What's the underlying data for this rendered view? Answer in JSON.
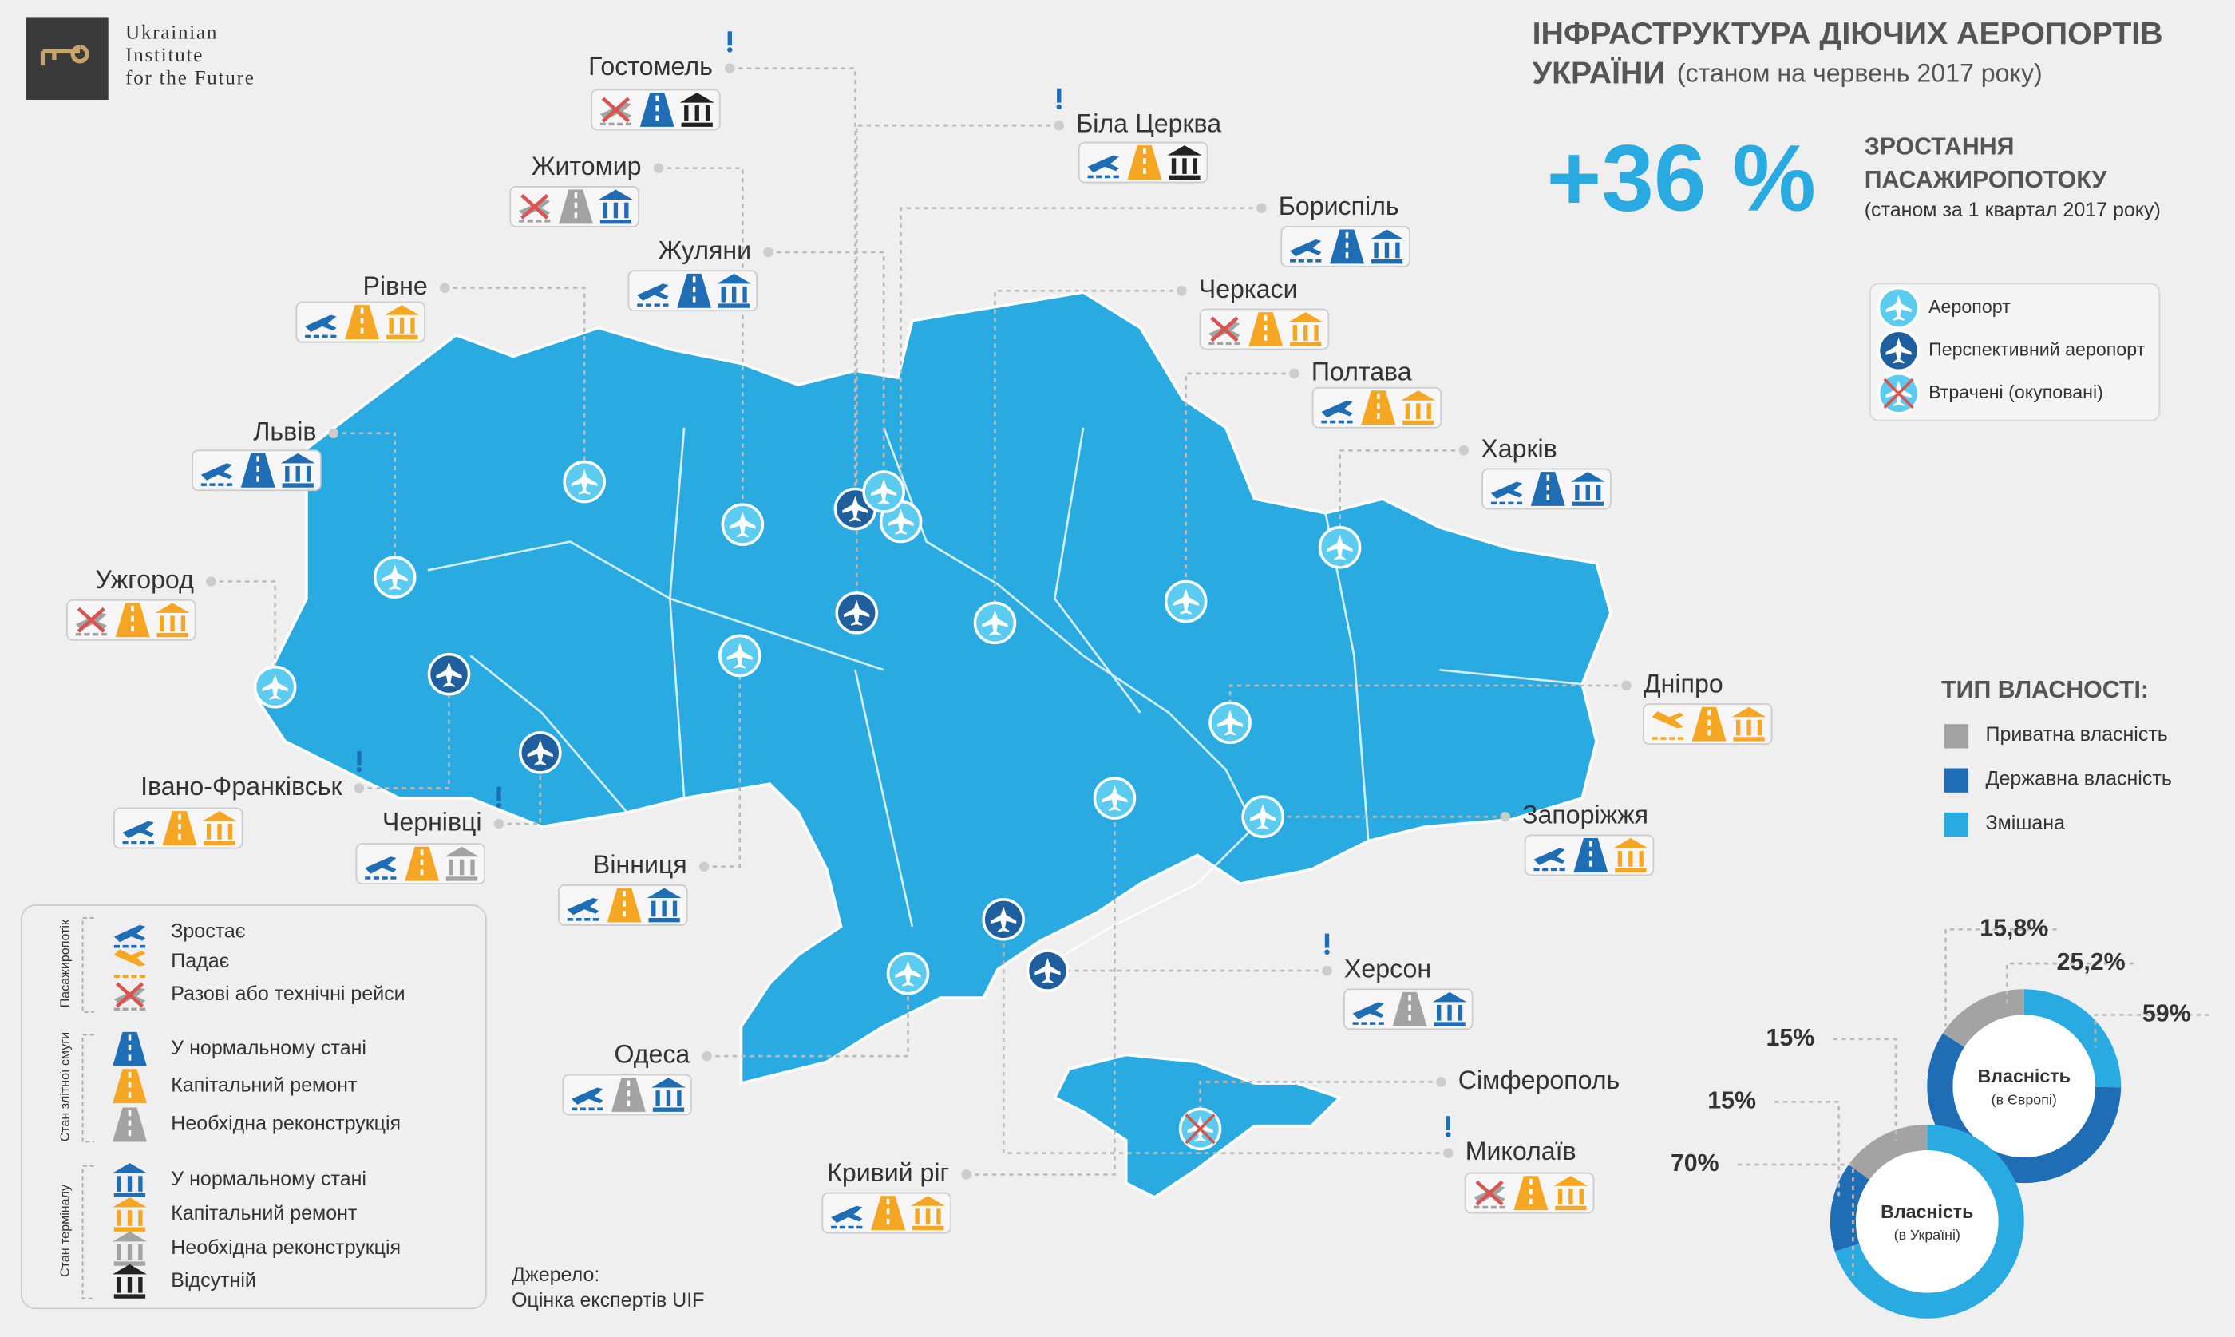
{
  "header": {
    "logo": [
      "Ukrainian",
      "Institute",
      "for the Future"
    ],
    "title_line1": "ІНФРАСТРУКТУРА ДІЮЧИХ АЕРОПОРТІВ",
    "title_line2_bold": "УКРАЇНИ",
    "title_line2_rest": "(станом на червень 2017 року)"
  },
  "stat": {
    "value": "+36 %",
    "label": [
      "ЗРОСТАННЯ",
      "ПАСАЖИРОПОТОКУ"
    ],
    "note": "(станом за 1 квартал 2017 року)"
  },
  "airport_legend": [
    "Аеропорт",
    "Перспективний аеропорт",
    "Втрачені (окуповані)"
  ],
  "airports": [
    "Гостомель",
    "Біла Церква",
    "Житомир",
    "Бориспіль",
    "Жуляни",
    "Черкаси",
    "Рівне",
    "Полтава",
    "Львів",
    "Харків",
    "Ужгород",
    "Дніпро",
    "Івано-Франківськ",
    "Чернівці",
    "Запоріжжя",
    "Вінниця",
    "Херсон",
    "Одеса",
    "Сімферополь",
    "Кривий ріг",
    "Миколаїв"
  ],
  "icon_legend": [
    {
      "title": "Пасажиропотік",
      "items": [
        "Зростає",
        "Падає",
        "Разові або технічні рейси"
      ]
    },
    {
      "title": "Стан злітної смуги",
      "items": [
        "У нормальному стані",
        "Капітальний ремонт",
        "Необхідна реконструкція"
      ]
    },
    {
      "title": "Стан терміналу",
      "items": [
        "У нормальному стані",
        "Капітальний ремонт",
        "Необхідна реконструкція",
        "Відсутній"
      ]
    }
  ],
  "source": [
    "Джерело:",
    "Оцінка експертів UIF"
  ],
  "ownership": {
    "title": "ТИП ВЛАСНОСТІ:",
    "categories": [
      "Приватна власність",
      "Державна власність",
      "Змішана"
    ],
    "colors": [
      "#a3a3a3",
      "#1f6db5",
      "#29abe2"
    ]
  },
  "donuts": [
    {
      "title": "Власність",
      "subtitle": "(в Європі)",
      "values": [
        15.8,
        59,
        25.2
      ],
      "value_labels": [
        "15,8%",
        "59%",
        "25,2%"
      ]
    },
    {
      "title": "Власність",
      "subtitle": "(в Україні)",
      "values": [
        15,
        15,
        70
      ],
      "value_labels": [
        "15%",
        "15%",
        "70%"
      ]
    }
  ]
}
